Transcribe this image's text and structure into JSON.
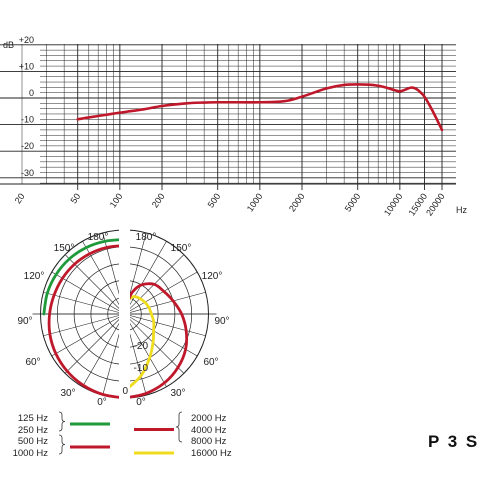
{
  "model": "P 3 S",
  "colors": {
    "red": "#c0182b",
    "green": "#1f9a3a",
    "yellow": "#f0dc1e",
    "grid": "#222222"
  },
  "chart_data": [
    {
      "type": "line",
      "title": "",
      "xlabel": "Hz",
      "ylabel": "dB",
      "xscale": "log",
      "xlim": [
        20,
        20000
      ],
      "ylim": [
        -35,
        20
      ],
      "x_ticks": [
        "20",
        "50",
        "100",
        "200",
        "500",
        "1000",
        "2000",
        "5000",
        "10000",
        "15000",
        "20000"
      ],
      "y_ticks": [
        "+20",
        "+10",
        "0",
        "-10",
        "-20",
        "-30"
      ],
      "grid": true,
      "series": [
        {
          "color": "#c0182b",
          "x": [
            50,
            60,
            80,
            100,
            150,
            200,
            300,
            400,
            500,
            700,
            1000,
            1500,
            2000,
            3000,
            4000,
            5000,
            6000,
            7000,
            8000,
            9000,
            10000,
            11000,
            12000,
            13000,
            14000,
            15000,
            17000,
            20000
          ],
          "y": [
            -8,
            -7.3,
            -6.3,
            -5.5,
            -4.2,
            -3,
            -2,
            -1.7,
            -1.6,
            -1.6,
            -1.6,
            -1.2,
            0.5,
            3.6,
            4.9,
            5.1,
            5,
            4.6,
            3.9,
            3.1,
            2.5,
            3.2,
            3.9,
            3.5,
            2.2,
            0.5,
            -4.5,
            -12
          ]
        }
      ]
    },
    {
      "type": "polar",
      "title": "",
      "angle_labels": {
        "top": "180°",
        "upper": "150°",
        "mid_upper": "120°",
        "mid": "90°",
        "lower": "60°",
        "bottom_side": "30°",
        "bottom": "0°"
      },
      "radial_ticks": [
        "-20",
        "-10",
        "0"
      ],
      "rlim_db": [
        -25,
        0
      ],
      "left_half": [
        {
          "label_group": "125 Hz, 250 Hz",
          "color": "#1f9a3a",
          "angle": [
            90,
            105,
            120,
            135,
            150,
            165,
            180
          ],
          "db": [
            -1,
            -1.2,
            -1.5,
            -1.8,
            -2.2,
            -2.6,
            -2.8
          ]
        },
        {
          "label_group": "500 Hz, 1000 Hz",
          "color": "#c0182b",
          "angle": [
            0,
            15,
            30,
            45,
            60,
            75,
            90,
            105,
            120,
            135,
            150,
            165,
            180
          ],
          "db": [
            0,
            -0.2,
            -0.5,
            -0.9,
            -1.4,
            -2,
            -2.7,
            -3.3,
            -3.7,
            -4,
            -4.3,
            -4.5,
            -4.6
          ]
        }
      ],
      "right_half": [
        {
          "label_group": "2000 Hz, 4000 Hz, 8000 Hz",
          "color": "#c0182b",
          "angle": [
            0,
            15,
            30,
            45,
            60,
            75,
            90,
            105,
            120,
            135,
            150,
            160,
            165
          ],
          "db": [
            0,
            -0.5,
            -1.3,
            -2.5,
            -4,
            -6,
            -8,
            -10,
            -11.5,
            -12.5,
            -15,
            -18,
            -21
          ]
        },
        {
          "label_group": "16000 Hz",
          "color": "#f0dc1e",
          "angle": [
            0,
            15,
            30,
            45,
            60,
            75,
            90,
            105,
            120,
            135,
            150,
            160,
            165
          ],
          "db": [
            -2,
            -6,
            -10,
            -13,
            -15,
            -16,
            -17,
            -17.5,
            -18,
            -18.5,
            -19,
            -20,
            -21
          ]
        }
      ]
    }
  ],
  "legend": {
    "left": [
      {
        "lines": [
          "125 Hz",
          "250 Hz"
        ],
        "color": "#1f9a3a"
      },
      {
        "lines": [
          "500 Hz",
          "1000 Hz"
        ],
        "color": "#c0182b"
      }
    ],
    "right": [
      {
        "lines": [
          "2000 Hz",
          "4000 Hz",
          "8000 Hz"
        ],
        "color": "#c0182b"
      },
      {
        "lines": [
          "16000 Hz"
        ],
        "color": "#f0dc1e"
      }
    ]
  }
}
